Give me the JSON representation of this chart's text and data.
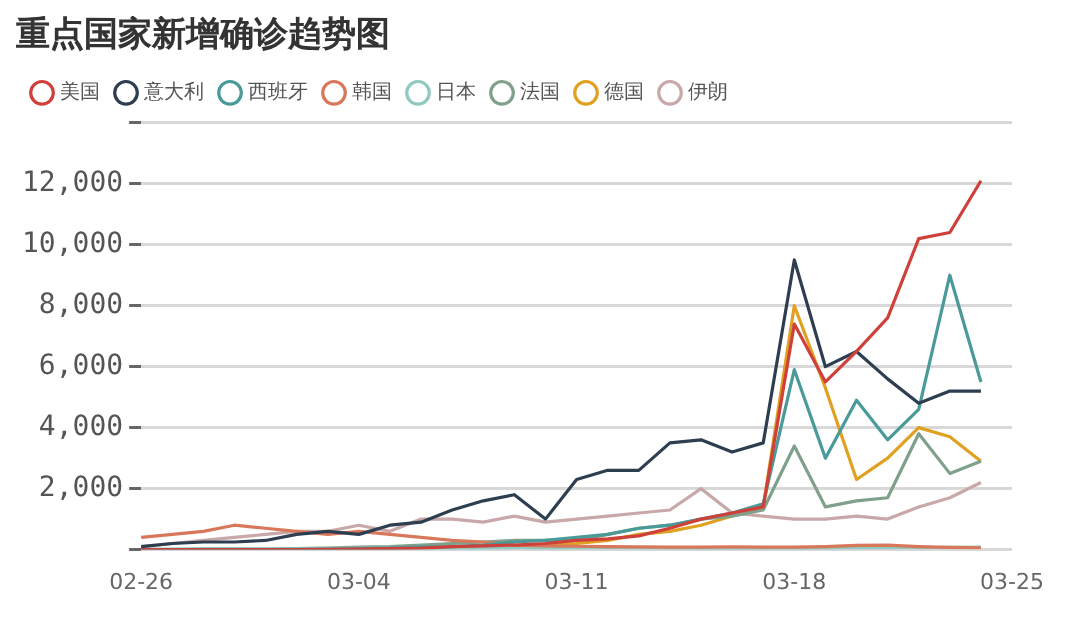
{
  "chart_data": {
    "type": "line",
    "title": "重点国家新增确诊趋势图",
    "categories": [
      "02-26",
      null,
      null,
      null,
      null,
      null,
      null,
      "03-04",
      null,
      null,
      null,
      null,
      null,
      null,
      "03-11",
      null,
      null,
      null,
      null,
      null,
      null,
      "03-18",
      null,
      null,
      null,
      null,
      null,
      null,
      "03-25"
    ],
    "series": [
      {
        "name": "美国",
        "color": "#d0403a",
        "values": [
          0,
          0,
          0,
          0,
          0,
          0,
          10,
          20,
          30,
          50,
          100,
          120,
          150,
          200,
          300,
          350,
          450,
          700,
          1000,
          1200,
          1400,
          7400,
          5500,
          6500,
          7600,
          10200,
          10400,
          12100,
          null
        ]
      },
      {
        "name": "意大利",
        "color": "#2d3e50",
        "values": [
          100,
          200,
          250,
          250,
          300,
          500,
          600,
          500,
          800,
          900,
          1300,
          1600,
          1800,
          1000,
          2300,
          2600,
          2600,
          3500,
          3600,
          3200,
          3500,
          9500,
          6000,
          6500,
          5600,
          4800,
          5200,
          5200,
          null
        ]
      },
      {
        "name": "西班牙",
        "color": "#4a9a9a",
        "values": [
          0,
          0,
          0,
          0,
          0,
          10,
          20,
          30,
          50,
          80,
          100,
          150,
          250,
          300,
          400,
          500,
          700,
          800,
          1000,
          1200,
          1500,
          5900,
          3000,
          4900,
          3600,
          4600,
          9000,
          5500,
          null
        ]
      },
      {
        "name": "韩国",
        "color": "#d9775a",
        "values": [
          400,
          500,
          600,
          800,
          700,
          600,
          500,
          600,
          500,
          400,
          300,
          250,
          150,
          120,
          110,
          100,
          90,
          80,
          80,
          90,
          80,
          80,
          100,
          140,
          150,
          100,
          70,
          60,
          null
        ]
      },
      {
        "name": "日本",
        "color": "#8fc9c0",
        "values": [
          20,
          20,
          30,
          30,
          20,
          30,
          40,
          40,
          50,
          30,
          30,
          50,
          60,
          50,
          50,
          60,
          60,
          50,
          40,
          40,
          40,
          40,
          50,
          60,
          60,
          60,
          70,
          80,
          null
        ]
      },
      {
        "name": "法国",
        "color": "#7fa08a",
        "values": [
          0,
          0,
          0,
          10,
          20,
          30,
          50,
          80,
          100,
          150,
          200,
          250,
          300,
          300,
          300,
          500,
          700,
          800,
          1000,
          1100,
          1300,
          3400,
          1400,
          1600,
          1700,
          3800,
          2500,
          2900,
          null
        ]
      },
      {
        "name": "德国",
        "color": "#e0a020",
        "values": [
          null,
          null,
          null,
          null,
          null,
          null,
          null,
          null,
          null,
          null,
          null,
          null,
          100,
          150,
          200,
          300,
          500,
          600,
          800,
          1100,
          1400,
          8000,
          5300,
          2300,
          3000,
          4000,
          3700,
          2900,
          null
        ]
      },
      {
        "name": "伊朗",
        "color": "#c8a8a8",
        "values": [
          100,
          200,
          300,
          400,
          500,
          600,
          600,
          800,
          600,
          1000,
          1000,
          900,
          1100,
          900,
          1000,
          1100,
          1200,
          1300,
          2000,
          1200,
          1100,
          1000,
          1000,
          1100,
          1000,
          1400,
          1700,
          2200,
          null
        ]
      }
    ],
    "ylim": [
      0,
      14000
    ],
    "yticks": [
      {
        "value": 0,
        "label": null
      },
      {
        "value": 2000,
        "label": "2,000"
      },
      {
        "value": 4000,
        "label": "4,000"
      },
      {
        "value": 6000,
        "label": "6,000"
      },
      {
        "value": 8000,
        "label": "8,000"
      },
      {
        "value": 10000,
        "label": "10,000"
      },
      {
        "value": 12000,
        "label": "12,000"
      },
      {
        "value": 14000,
        "label": null
      }
    ],
    "grid": "y",
    "legend": "top left",
    "marker": "none",
    "line_style": "solid"
  }
}
